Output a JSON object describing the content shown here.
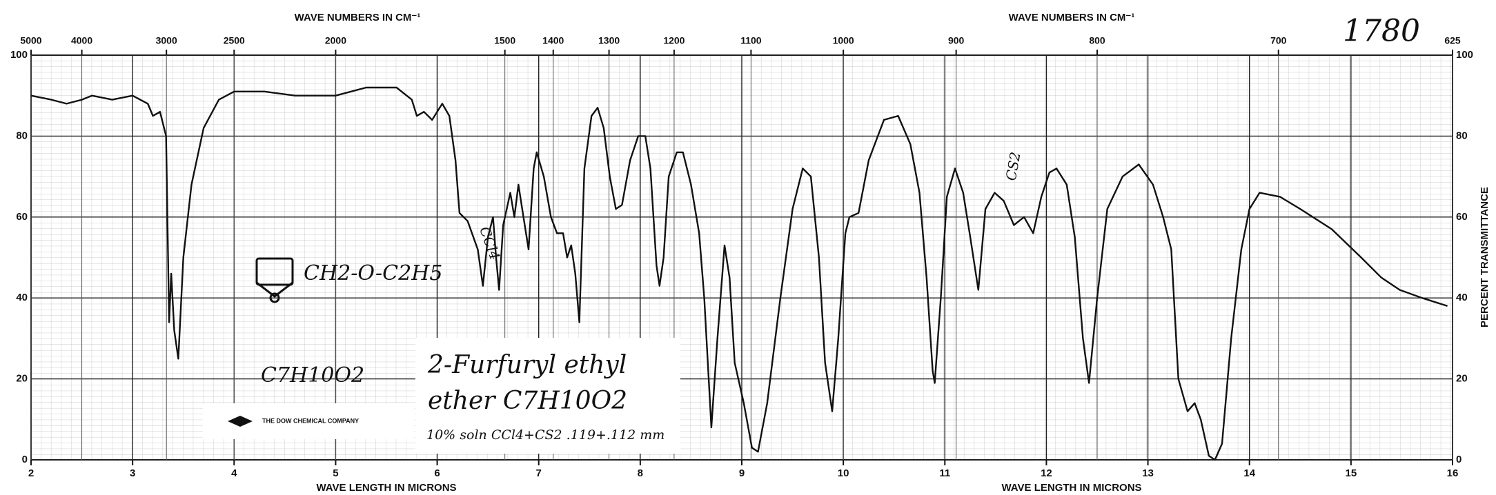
{
  "chart_data": {
    "type": "line",
    "xlabel": "WAVE LENGTH IN MICRONS",
    "x2label": "WAVE NUMBERS IN CM⁻¹",
    "ylabel": "PERCENT TRANSMITTANCE",
    "xlim": [
      2,
      16
    ],
    "xticks": [
      2,
      3,
      4,
      5,
      6,
      7,
      8,
      9,
      10,
      11,
      12,
      13,
      14,
      15,
      16
    ],
    "x2ticks": [
      5000,
      4000,
      3000,
      2500,
      2000,
      1500,
      1400,
      1300,
      1200,
      1100,
      1000,
      900,
      800,
      700,
      625
    ],
    "ylim": [
      0,
      100
    ],
    "yticks": [
      0,
      20,
      40,
      60,
      80,
      100
    ],
    "grid": true,
    "color": "#111111",
    "x": [
      2.0,
      2.2,
      2.35,
      2.5,
      2.6,
      2.8,
      3.0,
      3.15,
      3.2,
      3.27,
      3.33,
      3.36,
      3.38,
      3.41,
      3.45,
      3.5,
      3.58,
      3.7,
      3.85,
      4.0,
      4.3,
      4.6,
      5.0,
      5.3,
      5.6,
      5.75,
      5.8,
      5.87,
      5.95,
      6.05,
      6.12,
      6.18,
      6.22,
      6.3,
      6.4,
      6.45,
      6.5,
      6.55,
      6.58,
      6.61,
      6.65,
      6.72,
      6.76,
      6.8,
      6.85,
      6.9,
      6.95,
      6.98,
      7.05,
      7.12,
      7.18,
      7.24,
      7.28,
      7.32,
      7.36,
      7.4,
      7.45,
      7.52,
      7.58,
      7.64,
      7.7,
      7.76,
      7.82,
      7.9,
      7.98,
      8.05,
      8.1,
      8.16,
      8.19,
      8.23,
      8.28,
      8.36,
      8.42,
      8.5,
      8.58,
      8.63,
      8.7,
      8.76,
      8.83,
      8.88,
      8.93,
      9.02,
      9.1,
      9.16,
      9.25,
      9.38,
      9.5,
      9.6,
      9.68,
      9.76,
      9.82,
      9.89,
      9.95,
      10.02,
      10.06,
      10.15,
      10.25,
      10.4,
      10.54,
      10.66,
      10.75,
      10.82,
      10.88,
      10.9,
      10.96,
      11.02,
      11.1,
      11.18,
      11.25,
      11.33,
      11.4,
      11.49,
      11.58,
      11.68,
      11.78,
      11.87,
      11.95,
      12.03,
      12.1,
      12.2,
      12.28,
      12.36,
      12.42,
      12.5,
      12.6,
      12.75,
      12.91,
      13.05,
      13.15,
      13.23,
      13.3,
      13.39,
      13.46,
      13.52,
      13.6,
      13.66,
      13.73,
      13.82,
      13.92,
      14.0,
      14.1,
      14.3,
      14.5,
      14.81,
      15.1,
      15.3,
      15.48,
      15.7,
      15.95
    ],
    "values": [
      90,
      89,
      88,
      89,
      90,
      89,
      90,
      88,
      85,
      86,
      80,
      34,
      46,
      32,
      25,
      50,
      68,
      82,
      89,
      91,
      91,
      90,
      90,
      92,
      92,
      89,
      85,
      86,
      84,
      88,
      85,
      74,
      61,
      59,
      52,
      43,
      55,
      60,
      50,
      42,
      58,
      66,
      60,
      68,
      60,
      52,
      72,
      76,
      70,
      60,
      56,
      56,
      50,
      53,
      46,
      34,
      72,
      85,
      87,
      82,
      70,
      62,
      63,
      74,
      80,
      80,
      72,
      48,
      43,
      50,
      70,
      76,
      76,
      68,
      56,
      40,
      8,
      30,
      53,
      45,
      24,
      14,
      3,
      2,
      14,
      40,
      62,
      72,
      70,
      50,
      24,
      12,
      30,
      56,
      60,
      61,
      74,
      84,
      85,
      78,
      66,
      45,
      22,
      19,
      40,
      65,
      72,
      66,
      55,
      42,
      62,
      66,
      64,
      58,
      60,
      56,
      65,
      71,
      72,
      68,
      55,
      30,
      19,
      40,
      62,
      70,
      73,
      68,
      60,
      52,
      20,
      12,
      14,
      10,
      1,
      0,
      4,
      30,
      52,
      62,
      66,
      65,
      62,
      57,
      50,
      45,
      42,
      40,
      38
    ],
    "annotations": [
      "1780",
      "2-Furfuryl ethyl",
      "ether C7H10O2",
      "10% soln CCl4+CS2 .119+.112 mm",
      "C7H10O2",
      "CH2-O-C2H5",
      "CCl4",
      "CS2",
      "THE DOW CHEMICAL COMPANY"
    ]
  }
}
